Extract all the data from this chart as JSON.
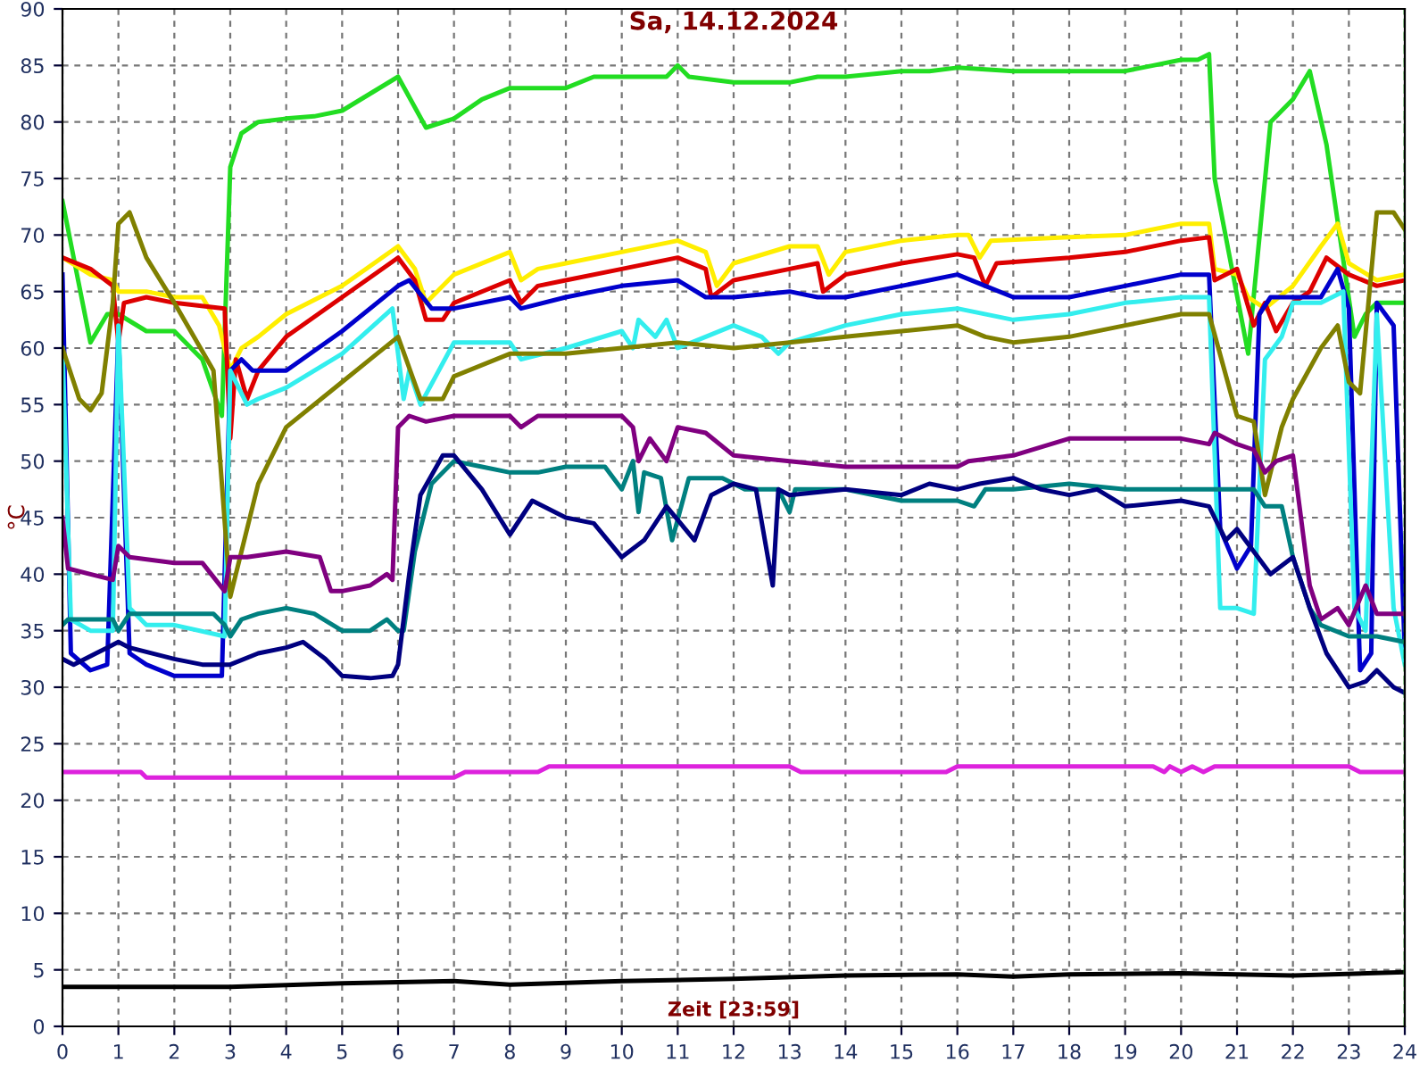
{
  "chart_data": {
    "type": "line",
    "title": "Sa, 14.12.2024",
    "xlabel": "Zeit [23:59]",
    "ylabel": "°C",
    "xlim": [
      0,
      24
    ],
    "ylim": [
      0,
      90
    ],
    "xticks": [
      0,
      1,
      2,
      3,
      4,
      5,
      6,
      7,
      8,
      9,
      10,
      11,
      12,
      13,
      14,
      15,
      16,
      17,
      18,
      19,
      20,
      21,
      22,
      23,
      24
    ],
    "yticks": [
      0,
      5,
      10,
      15,
      20,
      25,
      30,
      35,
      40,
      45,
      50,
      55,
      60,
      65,
      70,
      75,
      80,
      85,
      90
    ],
    "grid": true,
    "line_style": "solid",
    "marker": "none",
    "ref_lines": [
      {
        "axis": "x",
        "value": 24,
        "label": null,
        "color": "#22aa22",
        "line_style": "dashed"
      }
    ],
    "series": [
      {
        "color": "#22dd22",
        "x": [
          0,
          0.5,
          0.8,
          1,
          1.5,
          2,
          2.5,
          2.85,
          3,
          3.2,
          3.5,
          4,
          4.5,
          5,
          5.5,
          6,
          6.5,
          7,
          7.5,
          8,
          9,
          9.5,
          10,
          10.8,
          11,
          11.2,
          12,
          13,
          13.5,
          14,
          15,
          15.5,
          16,
          17,
          17.5,
          18,
          19,
          19.5,
          20,
          20.3,
          20.5,
          20.6,
          21.2,
          21.6,
          22,
          22.3,
          22.6,
          23.1,
          23.3,
          23.5,
          24
        ],
        "values": [
          73,
          60.5,
          63,
          63,
          61.5,
          61.5,
          59,
          54,
          76,
          79,
          80,
          80.3,
          80.5,
          81,
          82.5,
          84,
          79.5,
          80.3,
          82,
          83,
          83,
          84,
          84,
          84,
          85,
          84,
          83.5,
          83.5,
          84,
          84,
          84.5,
          84.5,
          84.8,
          84.5,
          84.5,
          84.5,
          84.5,
          85,
          85.5,
          85.5,
          86,
          75,
          59.5,
          80,
          82,
          84.5,
          78,
          61,
          63,
          64,
          64
        ]
      },
      {
        "color": "#ffee00",
        "x": [
          0,
          0.5,
          0.9,
          1,
          1.5,
          2,
          2.5,
          2.8,
          3,
          3.2,
          3.5,
          4,
          5,
          6,
          6.3,
          6.5,
          7,
          8,
          8.2,
          8.5,
          9,
          10,
          11,
          11.5,
          11.7,
          12,
          13,
          13.5,
          13.7,
          14,
          15,
          16,
          16.2,
          16.4,
          16.6,
          18,
          19,
          20,
          20.5,
          20.6,
          21,
          21.2,
          21.5,
          22,
          22.5,
          22.8,
          23,
          23.5,
          24
        ],
        "values": [
          68,
          66.5,
          66,
          65,
          65,
          64.5,
          64.5,
          62,
          58,
          60,
          61,
          63,
          65.5,
          69,
          67,
          64,
          66.5,
          68.5,
          66,
          67,
          67.5,
          68.5,
          69.5,
          68.5,
          65.5,
          67.5,
          69,
          69,
          66.5,
          68.5,
          69.5,
          70,
          70,
          68,
          69.5,
          69.8,
          70,
          71,
          71,
          67,
          66.5,
          64.5,
          63.5,
          65.5,
          69,
          71,
          67.5,
          66,
          66.5
        ]
      },
      {
        "color": "#dd0000",
        "x": [
          0,
          0.5,
          0.9,
          1,
          1.1,
          1.5,
          2,
          2.9,
          3,
          3.1,
          3.3,
          3.5,
          4,
          5,
          6,
          6.3,
          6.5,
          6.8,
          7,
          8,
          8.2,
          8.5,
          9,
          10,
          11,
          11.5,
          11.6,
          12,
          13,
          13.5,
          13.6,
          14,
          15,
          16,
          16.3,
          16.5,
          16.7,
          18,
          19,
          20,
          20.5,
          20.6,
          21,
          21.3,
          21.5,
          21.7,
          22,
          22.3,
          22.6,
          23,
          23.5,
          24
        ],
        "values": [
          68,
          67,
          65.5,
          60.5,
          64,
          64.5,
          64,
          63.5,
          52,
          59,
          55.5,
          58,
          61,
          64.5,
          68,
          66,
          62.5,
          62.5,
          64,
          66,
          64,
          65.5,
          66,
          67,
          68,
          67,
          64.5,
          66,
          67,
          67.5,
          65,
          66.5,
          67.5,
          68.3,
          68,
          65.5,
          67.5,
          68,
          68.5,
          69.5,
          69.8,
          66,
          67,
          62,
          64,
          61.5,
          64,
          65,
          68,
          66.5,
          65.5,
          66
        ]
      },
      {
        "color": "#0000cc",
        "x": [
          0,
          0.15,
          0.5,
          0.8,
          1,
          1.2,
          1.5,
          2,
          2.85,
          3,
          3.2,
          3.4,
          4,
          5,
          6,
          6.2,
          6.6,
          7,
          8,
          8.2,
          9,
          10,
          11,
          11.5,
          12,
          13,
          13.5,
          14,
          15,
          16,
          16.5,
          17,
          18,
          19,
          20,
          20.5,
          20.7,
          21,
          21.25,
          21.4,
          21.6,
          22,
          22.5,
          22.8,
          23,
          23.2,
          23.4,
          23.5,
          23.8,
          24
        ],
        "values": [
          66.5,
          33,
          31.5,
          32,
          61.5,
          33,
          32,
          31,
          31,
          58,
          59,
          58,
          58,
          61.5,
          65.5,
          66,
          63.5,
          63.5,
          64.5,
          63.5,
          64.5,
          65.5,
          66,
          64.5,
          64.5,
          65,
          64.5,
          64.5,
          65.5,
          66.5,
          65.5,
          64.5,
          64.5,
          65.5,
          66.5,
          66.5,
          44,
          40.5,
          42.5,
          63,
          64.5,
          64.5,
          64.5,
          67,
          63.5,
          31.5,
          33,
          64,
          62,
          33
        ]
      },
      {
        "color": "#33eeee",
        "x": [
          0,
          0.15,
          0.5,
          0.9,
          1,
          1.2,
          1.5,
          2,
          2.9,
          3,
          3.3,
          3.5,
          4,
          5,
          5.9,
          6.1,
          6.2,
          6.4,
          7,
          8,
          8.2,
          9,
          10,
          10.2,
          10.3,
          10.6,
          10.8,
          11,
          11.5,
          12,
          12.5,
          12.8,
          13,
          14,
          15,
          16,
          17,
          18,
          19,
          20,
          20.5,
          20.7,
          21,
          21.3,
          21.5,
          21.8,
          22,
          22.5,
          22.9,
          23.1,
          23.3,
          23.5,
          23.8,
          24
        ],
        "values": [
          60,
          36,
          35,
          35,
          62,
          37,
          35.5,
          35.5,
          34.5,
          58,
          55,
          55.5,
          56.5,
          59.5,
          63.5,
          55.5,
          58,
          55,
          60.5,
          60.5,
          59,
          60,
          61.5,
          60,
          62.5,
          61,
          62.5,
          60,
          61,
          62,
          61,
          59.5,
          60.5,
          62,
          63,
          63.5,
          62.5,
          63,
          64,
          64.5,
          64.5,
          37,
          37,
          36.5,
          59,
          61,
          64,
          64,
          65,
          37,
          35,
          63,
          37,
          32
        ]
      },
      {
        "color": "#808000",
        "x": [
          0,
          0.3,
          0.5,
          0.7,
          0.9,
          1,
          1.2,
          1.5,
          2,
          2.7,
          3,
          3.3,
          3.5,
          4,
          5,
          5.5,
          6,
          6.4,
          6.8,
          7,
          8,
          9,
          10,
          11,
          12,
          13,
          14,
          15,
          16,
          16.5,
          17,
          18,
          19,
          20,
          20.5,
          21,
          21.3,
          21.5,
          21.8,
          22,
          22.5,
          22.8,
          23,
          23.2,
          23.5,
          23.8,
          24
        ],
        "values": [
          60,
          55.5,
          54.5,
          56,
          64,
          71,
          72,
          68,
          64,
          58,
          38,
          44,
          48,
          53,
          57,
          59,
          61,
          55.5,
          55.5,
          57.5,
          59.5,
          59.5,
          60,
          60.5,
          60,
          60.5,
          61,
          61.5,
          62,
          61,
          60.5,
          61,
          62,
          63,
          63,
          54,
          53.5,
          47,
          53,
          55.5,
          60,
          62,
          57,
          56,
          72,
          72,
          70.5
        ]
      },
      {
        "color": "#800080",
        "x": [
          0,
          0.1,
          0.5,
          0.9,
          1,
          1.2,
          2,
          2.5,
          2.9,
          3,
          3.3,
          4,
          4.6,
          4.8,
          5,
          5.5,
          5.8,
          5.9,
          6,
          6.2,
          6.5,
          7,
          8,
          8.2,
          8.5,
          9,
          10,
          10.2,
          10.3,
          10.5,
          10.8,
          11,
          11.5,
          12,
          13,
          14,
          15,
          16,
          16.2,
          17,
          18,
          19,
          20,
          20.5,
          20.6,
          21,
          21.3,
          21.5,
          21.7,
          22,
          22.3,
          22.5,
          22.8,
          23,
          23.3,
          23.5,
          24
        ],
        "values": [
          45,
          40.5,
          40,
          39.5,
          42.5,
          41.5,
          41,
          41,
          38.5,
          41.5,
          41.5,
          42,
          41.5,
          38.5,
          38.5,
          39,
          40,
          39.5,
          53,
          54,
          53.5,
          54,
          54,
          53,
          54,
          54,
          54,
          53,
          50,
          52,
          50,
          53,
          52.5,
          50.5,
          50,
          49.5,
          49.5,
          49.5,
          50,
          50.5,
          52,
          52,
          52,
          51.5,
          52.5,
          51.5,
          51,
          49,
          50,
          50.5,
          39,
          36,
          37,
          35.5,
          39,
          36.5,
          36.5
        ]
      },
      {
        "color": "#008080",
        "x": [
          0,
          0.1,
          0.9,
          1,
          1.2,
          2,
          2.7,
          2.9,
          3,
          3.2,
          3.5,
          4,
          4.5,
          5,
          5.5,
          5.8,
          6,
          6.1,
          6.3,
          6.6,
          7,
          7.5,
          8,
          8.5,
          9,
          9.7,
          10,
          10.2,
          10.3,
          10.4,
          10.7,
          10.9,
          11.2,
          11.8,
          12.2,
          12.8,
          13,
          13.1,
          14,
          15,
          16,
          16.3,
          16.5,
          17,
          18,
          19,
          20,
          20.5,
          21,
          21.3,
          21.5,
          21.8,
          22,
          22.3,
          22.5,
          23,
          23.5,
          24
        ],
        "values": [
          35.5,
          36,
          36,
          35,
          36.5,
          36.5,
          36.5,
          35.5,
          34.5,
          36,
          36.5,
          37,
          36.5,
          35,
          35,
          36,
          35,
          35,
          42,
          48,
          50,
          49.5,
          49,
          49,
          49.5,
          49.5,
          47.5,
          50,
          45.5,
          49,
          48.5,
          43,
          48.5,
          48.5,
          47.5,
          47.5,
          45.5,
          47.5,
          47.5,
          46.5,
          46.5,
          46,
          47.5,
          47.5,
          48,
          47.5,
          47.5,
          47.5,
          47.5,
          47.5,
          46,
          46,
          41.5,
          37,
          35.5,
          34.5,
          34.5,
          34
        ]
      },
      {
        "color": "#000080",
        "x": [
          0,
          0.2,
          0.6,
          0.8,
          1,
          1.2,
          2,
          2.5,
          3,
          3.5,
          4,
          4.3,
          4.7,
          5,
          5.5,
          5.9,
          6,
          6.2,
          6.4,
          6.8,
          7,
          7.5,
          8,
          8.4,
          9,
          9.5,
          10,
          10.4,
          10.8,
          11.3,
          11.6,
          12,
          12.4,
          12.7,
          12.8,
          13,
          14,
          15,
          15.5,
          16,
          16.4,
          17,
          17.5,
          18,
          18.5,
          19,
          20,
          20.5,
          20.8,
          21,
          21.3,
          21.6,
          22,
          22.3,
          22.6,
          23,
          23.3,
          23.5,
          23.8,
          24
        ],
        "values": [
          32.5,
          32,
          33,
          33.5,
          34,
          33.5,
          32.5,
          32,
          32,
          33,
          33.5,
          34,
          32.5,
          31,
          30.8,
          31,
          32,
          40,
          47,
          50.5,
          50.5,
          47.5,
          43.5,
          46.5,
          45,
          44.5,
          41.5,
          43,
          46,
          43,
          47,
          48,
          47.5,
          39,
          47.5,
          47,
          47.5,
          47,
          48,
          47.5,
          48,
          48.5,
          47.5,
          47,
          47.5,
          46,
          46.5,
          46,
          43,
          44,
          42,
          40,
          41.5,
          37,
          33,
          30,
          30.5,
          31.5,
          30,
          29.5
        ]
      },
      {
        "color": "#dd22dd",
        "x": [
          0,
          1.4,
          1.5,
          7,
          7.2,
          8.5,
          8.7,
          13,
          13.2,
          15.8,
          16,
          19.5,
          19.7,
          19.8,
          20,
          20.2,
          20.4,
          20.6,
          23,
          23.2,
          24
        ],
        "values": [
          22.5,
          22.5,
          22,
          22,
          22.5,
          22.5,
          23,
          23,
          22.5,
          22.5,
          23,
          23,
          22.5,
          23,
          22.5,
          23,
          22.5,
          23,
          23,
          22.5,
          22.5
        ]
      },
      {
        "color": "#000000",
        "x": [
          0,
          3,
          5,
          7,
          8,
          10,
          12,
          14,
          16,
          17,
          18,
          20,
          22,
          24
        ],
        "values": [
          3.5,
          3.5,
          3.8,
          4,
          3.7,
          4,
          4.2,
          4.5,
          4.6,
          4.4,
          4.6,
          4.7,
          4.5,
          4.8
        ]
      }
    ]
  }
}
